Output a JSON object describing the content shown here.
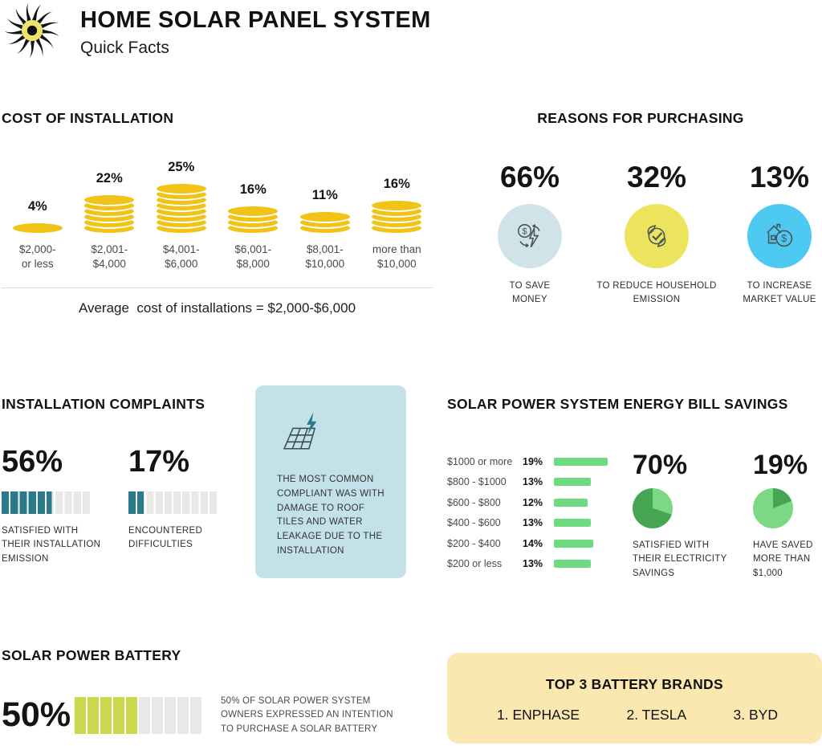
{
  "header": {
    "title": "HOME SOLAR PANEL SYSTEM",
    "subtitle": "Quick Facts",
    "logo_icon": "sun-icon"
  },
  "colors": {
    "coin_gold": "#F2C317",
    "teal": "#2B7A8B",
    "segment_gray": "#E8E9E7",
    "battery_green": "#CCD94F",
    "bar_green": "#6FDB80",
    "pie_dark_green": "#45A552",
    "pie_light_green": "#7CD884",
    "callout_blue": "#C2E1E8",
    "brands_yellow": "#FBE7B0",
    "sun_yellow": "#EDE26A",
    "icon_stroke": "#4A5457"
  },
  "chart_data": [
    {
      "id": "cost_of_installation",
      "type": "bar",
      "title": "COST OF INSTALLATION",
      "categories": [
        "$2,000-\nor less",
        "$2,001-\n$4,000",
        "$4,001-\n$6,000",
        "$6,001-\n$8,000",
        "$8,001-\n$10,000",
        "more than\n$10,000"
      ],
      "values": [
        4,
        22,
        25,
        16,
        11,
        16
      ],
      "unit": "%",
      "coins": [
        1,
        6,
        8,
        4,
        3,
        5
      ],
      "footnote": "Average  cost of installations = $2,000-$6,000"
    },
    {
      "id": "reasons_for_purchasing",
      "type": "pictogram",
      "title": "REASONS FOR PURCHASING",
      "items": [
        {
          "value": "66%",
          "percent": 66,
          "label": "TO SAVE\nMONEY",
          "icon": "money-energy-cycle-icon",
          "circle_color": "#CFE3E9"
        },
        {
          "value": "32%",
          "percent": 32,
          "label": "TO REDUCE HOUSEHOLD\nEMISSION",
          "icon": "leaf-check-icon",
          "circle_color": "#EBE45C"
        },
        {
          "value": "13%",
          "percent": 13,
          "label": "TO INCREASE\nMARKET VALUE",
          "icon": "house-dollar-icon",
          "circle_color": "#4EC9F1"
        }
      ]
    },
    {
      "id": "installation_complaints",
      "type": "segmented-bar",
      "title": "INSTALLATION COMPLAINTS",
      "segments": 10,
      "items": [
        {
          "value": "56%",
          "percent": 56,
          "label": "SATISFIED WITH\nTHEIR INSTALLATION\nEMISSION"
        },
        {
          "value": "17%",
          "percent": 17,
          "label": "ENCOUNTERED\nDIFFICULTIES"
        }
      ],
      "callout": {
        "icon": "solar-panel-bolt-icon",
        "text": "THE MOST COMMON\nCOMPLIANT WAS WITH\nDAMAGE TO ROOF\nTILES AND WATER\nLEAKAGE DUE TO THE\nINSTALLATION"
      }
    },
    {
      "id": "energy_bill_savings",
      "type": "bar",
      "title": "SOLAR POWER SYSTEM ENERGY BILL SAVINGS",
      "categories": [
        "$1000 or more",
        "$800 - $1000",
        "$600 - $800",
        "$400 - $600",
        "$200 - $400",
        "$200 or less"
      ],
      "values": [
        19,
        13,
        12,
        13,
        14,
        13
      ],
      "unit": "%",
      "pies": [
        {
          "value": "70%",
          "percent": 70,
          "style": "majority-dark",
          "label": "SATISFIED WITH\nTHEIR ELECTRICITY\nSAVINGS"
        },
        {
          "value": "19%",
          "percent": 19,
          "style": "minority-dark",
          "label": "HAVE SAVED\nMORE THAN\n$1,000"
        }
      ]
    },
    {
      "id": "solar_power_battery",
      "type": "segmented-bar",
      "title": "SOLAR POWER BATTERY",
      "value": "50%",
      "percent": 50,
      "segments": 10,
      "note": "50% OF SOLAR POWER SYSTEM\nOWNERS EXPRESSED AN INTENTION\nTO PURCHASE A SOLAR BATTERY"
    },
    {
      "id": "top_battery_brands",
      "type": "table",
      "title": "TOP 3 BATTERY BRANDS",
      "items": [
        "1. ENPHASE",
        "2. TESLA",
        "3. BYD"
      ]
    }
  ]
}
